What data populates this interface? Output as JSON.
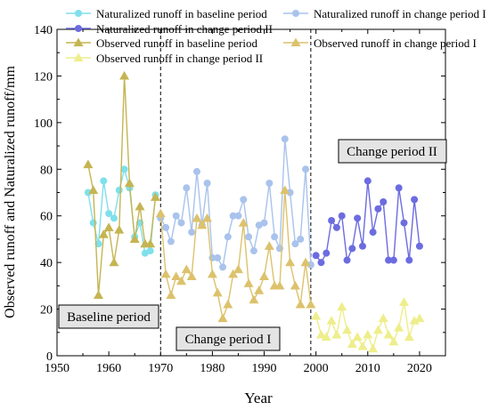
{
  "chart_data": {
    "type": "line",
    "xlabel": "Year",
    "ylabel": "Observed runoff and Naturalized runoff/mm",
    "xlim": [
      1950,
      2025
    ],
    "ylim": [
      0,
      140
    ],
    "xticks": [
      1950,
      1960,
      1970,
      1980,
      1990,
      2000,
      2010,
      2020
    ],
    "yticks": [
      0,
      20,
      40,
      60,
      80,
      100,
      120,
      140
    ],
    "grid": false,
    "legend_position": "top",
    "period_boundaries": [
      1970,
      1999
    ],
    "annotations": [
      "Baseline period",
      "Change period I",
      "Change period II"
    ],
    "series": [
      {
        "name": "Naturalized runoff in baseline period",
        "color": "#7fe0ec",
        "marker": "circle",
        "x": [
          1956,
          1957,
          1958,
          1959,
          1960,
          1961,
          1962,
          1963,
          1964,
          1965,
          1966,
          1967,
          1968,
          1969
        ],
        "y": [
          70,
          57,
          48,
          75,
          61,
          59,
          71,
          80,
          72,
          51,
          57,
          44,
          45,
          69
        ]
      },
      {
        "name": "Naturalized runoff in change period I",
        "color": "#a9c3ec",
        "marker": "circle",
        "x": [
          1970,
          1971,
          1972,
          1973,
          1974,
          1975,
          1976,
          1977,
          1978,
          1979,
          1980,
          1981,
          1982,
          1983,
          1984,
          1985,
          1986,
          1987,
          1988,
          1989,
          1990,
          1991,
          1992,
          1993,
          1994,
          1995,
          1996,
          1997,
          1998,
          1999
        ],
        "y": [
          59,
          55,
          49,
          60,
          57,
          72,
          53,
          79,
          56,
          74,
          42,
          42,
          38,
          51,
          60,
          60,
          67,
          51,
          45,
          56,
          57,
          74,
          51,
          46,
          93,
          70,
          48,
          50,
          80,
          39
        ]
      },
      {
        "name": "Naturalized runoff in change period II",
        "color": "#6c6ce0",
        "marker": "circle",
        "x": [
          2000,
          2001,
          2002,
          2003,
          2004,
          2005,
          2006,
          2007,
          2008,
          2009,
          2010,
          2011,
          2012,
          2013,
          2014,
          2015,
          2016,
          2017,
          2018,
          2019,
          2020
        ],
        "y": [
          43,
          40,
          44,
          58,
          55,
          60,
          41,
          46,
          59,
          47,
          75,
          53,
          63,
          66,
          41,
          41,
          72,
          57,
          41,
          67,
          47
        ]
      },
      {
        "name": "Observed runoff in baseline period",
        "color": "#c5b552",
        "marker": "triangle",
        "x": [
          1956,
          1957,
          1958,
          1959,
          1960,
          1961,
          1962,
          1963,
          1964,
          1965,
          1966,
          1967,
          1968,
          1969
        ],
        "y": [
          82,
          71,
          26,
          52,
          55,
          40,
          54,
          120,
          74,
          50,
          64,
          48,
          48,
          68
        ]
      },
      {
        "name": "Observed runoff in change period I",
        "color": "#dcc26c",
        "marker": "triangle",
        "x": [
          1970,
          1971,
          1972,
          1973,
          1974,
          1975,
          1976,
          1977,
          1978,
          1979,
          1980,
          1981,
          1982,
          1983,
          1984,
          1985,
          1986,
          1987,
          1988,
          1989,
          1990,
          1991,
          1992,
          1993,
          1994,
          1995,
          1996,
          1997,
          1998,
          1999
        ],
        "y": [
          61,
          35,
          26,
          34,
          32,
          37,
          34,
          59,
          56,
          59,
          35,
          27,
          16,
          22,
          35,
          37,
          57,
          31,
          24,
          28,
          34,
          47,
          30,
          30,
          71,
          40,
          30,
          22,
          40,
          22
        ]
      },
      {
        "name": "Observed runoff in change period II",
        "color": "#eeee8c",
        "marker": "triangle",
        "x": [
          2000,
          2001,
          2002,
          2003,
          2004,
          2005,
          2006,
          2007,
          2008,
          2009,
          2010,
          2011,
          2012,
          2013,
          2014,
          2015,
          2016,
          2017,
          2018,
          2019,
          2020
        ],
        "y": [
          17,
          9,
          8,
          15,
          9,
          21,
          11,
          5,
          8,
          4,
          9,
          3,
          11,
          16,
          9,
          6,
          12,
          23,
          8,
          15,
          16
        ]
      }
    ]
  }
}
